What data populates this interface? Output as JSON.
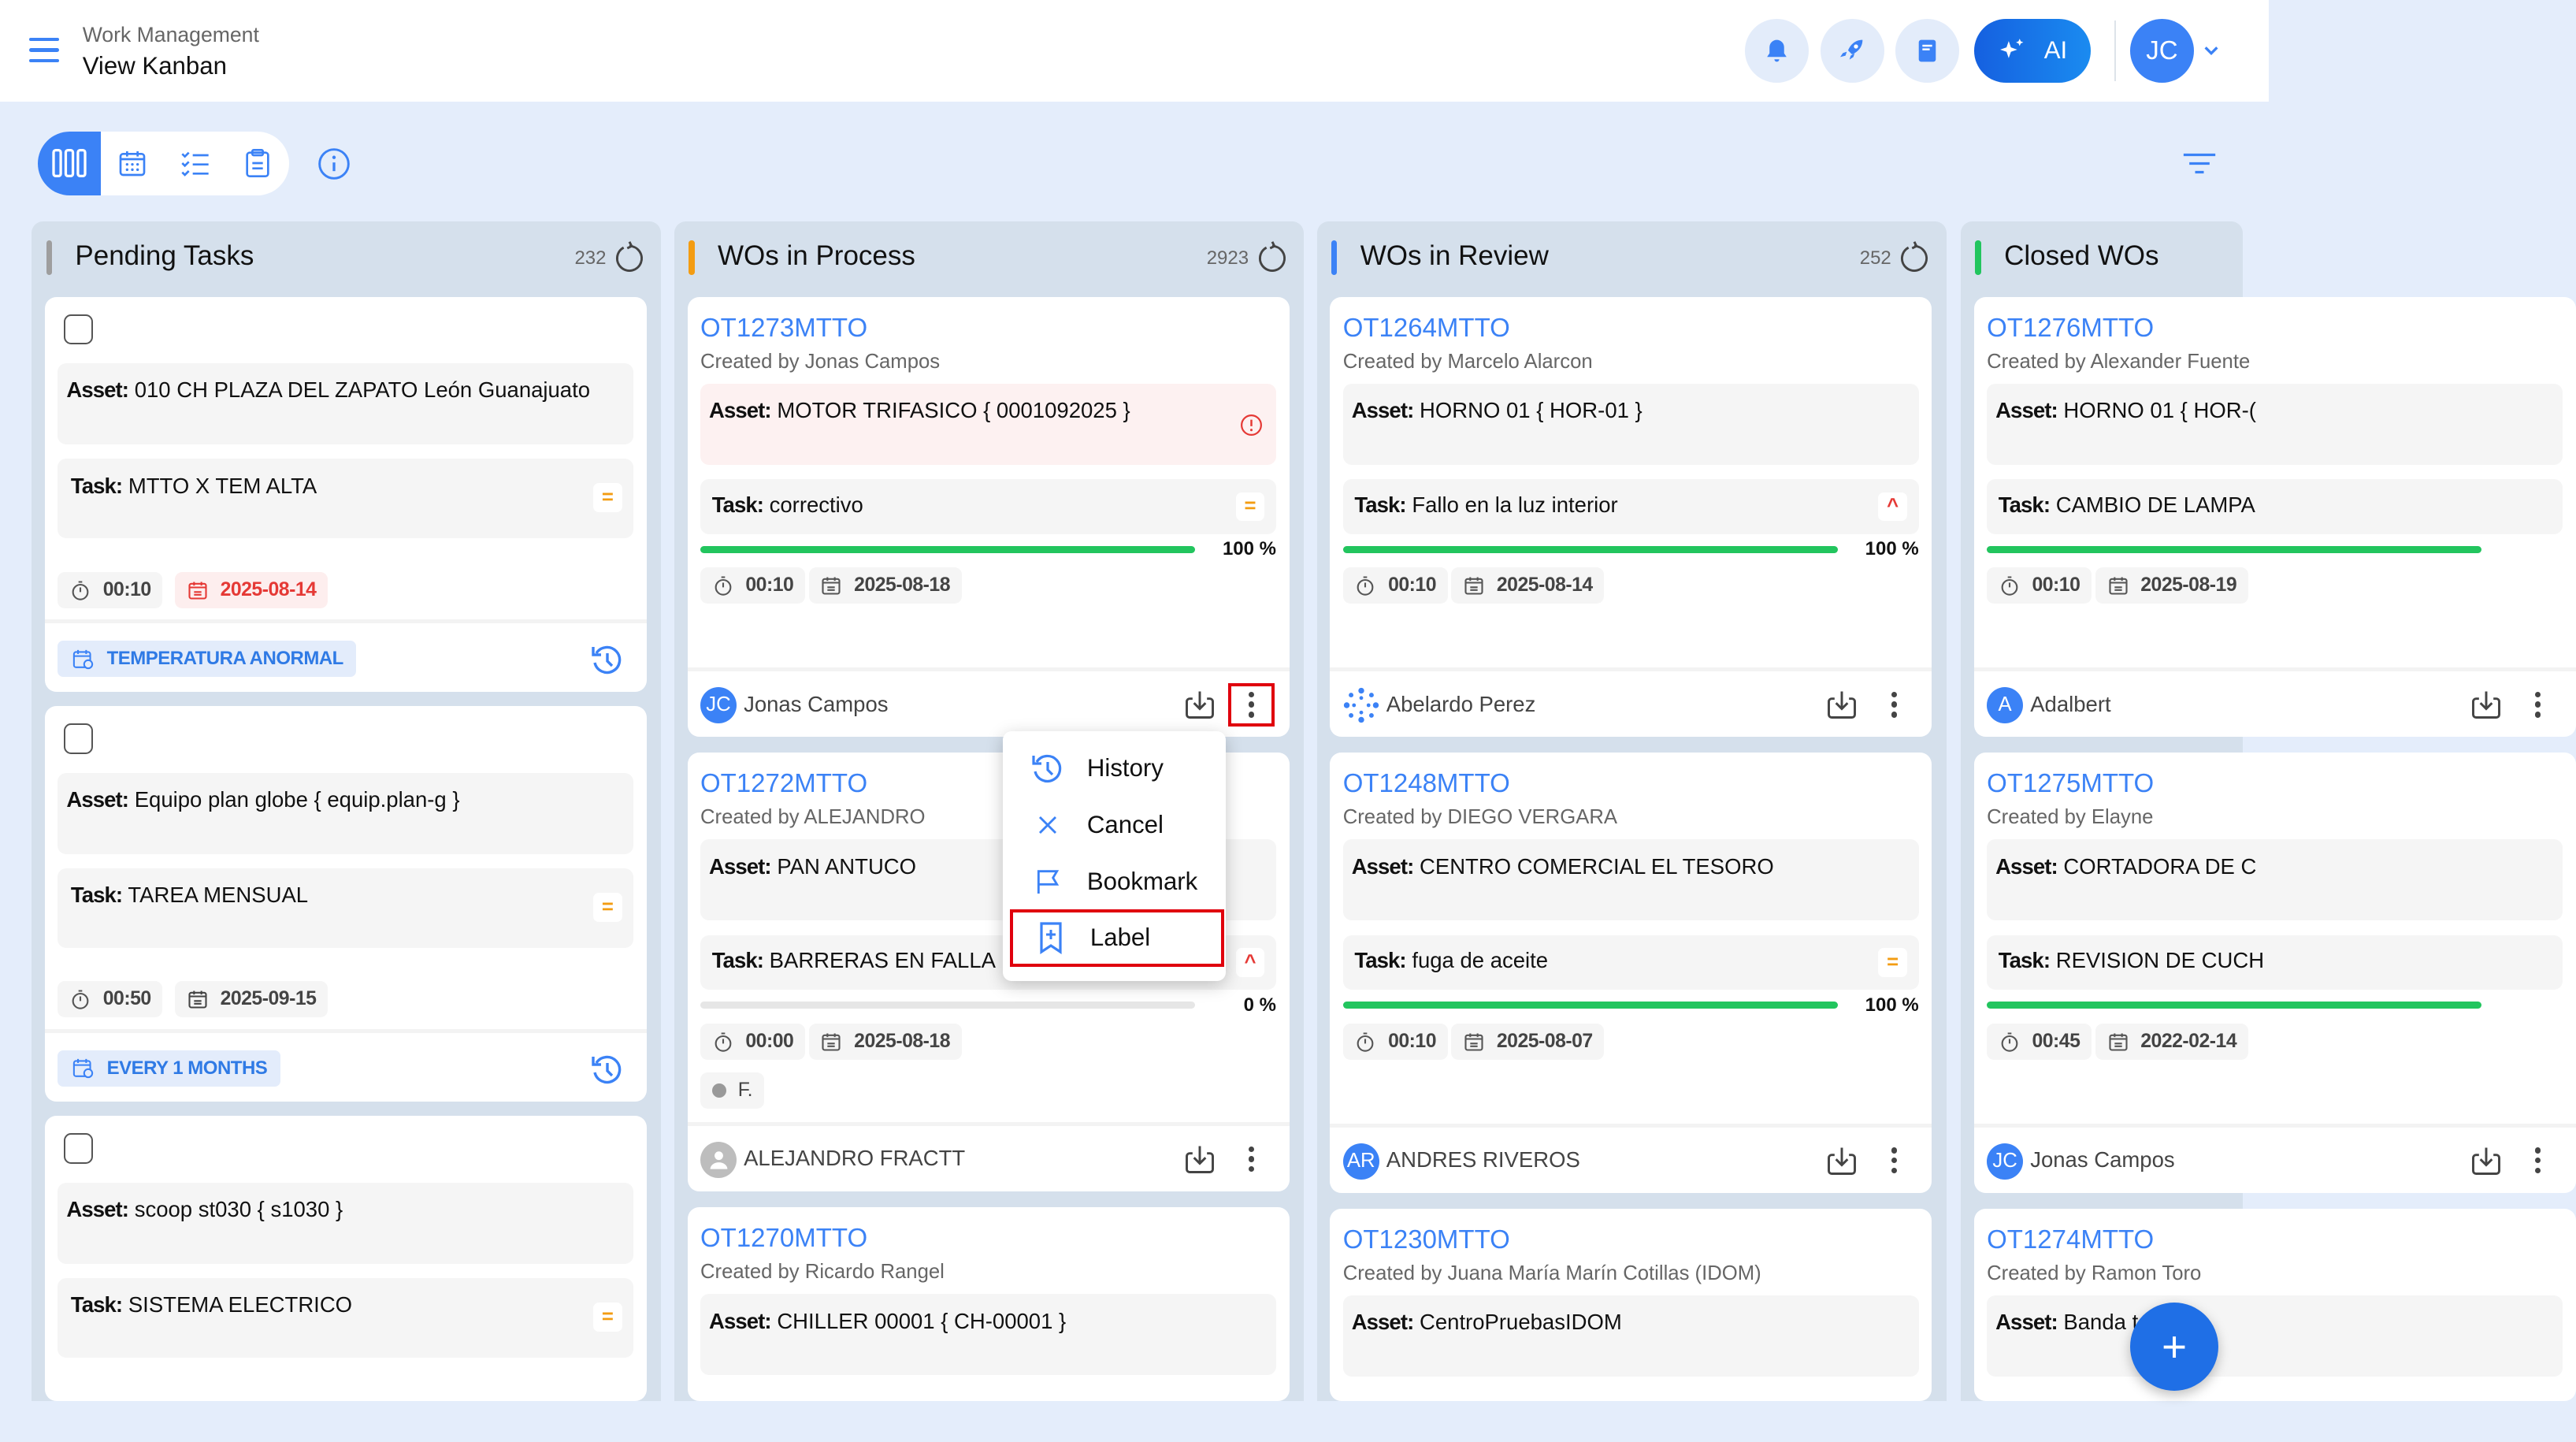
{
  "header": {
    "app_title": "Work Management",
    "page_title": "View Kanban",
    "ai_label": "AI",
    "user_initials": "JC"
  },
  "colors": {
    "accent": "#3b82f6",
    "pending": "#9e9e9e",
    "process": "#f39c12",
    "review": "#3b82f6",
    "closed": "#22c55e",
    "overdue": "#e53935",
    "progress": "#22c55e"
  },
  "columns": [
    {
      "title": "Pending Tasks",
      "count": "232",
      "color": "#9e9e9e",
      "type": "pending",
      "cards": [
        {
          "asset": "010 CH PLAZA DEL ZAPATO León Guanajuato",
          "task": "MTTO X TEM ALTA",
          "priority": "medium",
          "time": "00:10",
          "date": "2025-08-14",
          "overdue": true,
          "label": "TEMPERATURA ANORMAL"
        },
        {
          "asset": "Equipo plan globe { equip.plan-g }",
          "task": "TAREA MENSUAL",
          "priority": "medium",
          "time": "00:50",
          "date": "2025-09-15",
          "overdue": false,
          "label": "EVERY 1 MONTHS"
        },
        {
          "asset": "scoop st030 { s1030 }",
          "task": "SISTEMA ELECTRICO",
          "priority": "medium"
        }
      ]
    },
    {
      "title": "WOs in Process",
      "count": "2923",
      "color": "#f39c12",
      "type": "wo",
      "cards": [
        {
          "id": "OT1273MTTO",
          "created_by": "Created by Jonas Campos",
          "asset": "MOTOR TRIFASICO { 0001092025 }",
          "asset_alert": true,
          "task": "correctivo",
          "priority": "medium",
          "progress": 100,
          "progress_label": "100 %",
          "time": "00:10",
          "date": "2025-08-18",
          "assignee": "Jonas Campos",
          "assignee_initials": "JC",
          "avatar": "initials",
          "menu_open": true
        },
        {
          "id": "OT1272MTTO",
          "created_by": "Created by ALEJANDRO",
          "asset": "PAN ANTUCO",
          "task": "BARRERAS EN FALLA",
          "priority": "high",
          "progress": 0,
          "progress_label": "0 %",
          "time": "00:00",
          "date": "2025-08-18",
          "extra_chip": "F.",
          "assignee": "ALEJANDRO FRACTT",
          "avatar": "person"
        },
        {
          "id": "OT1270MTTO",
          "created_by": "Created by Ricardo Rangel",
          "asset": "CHILLER 00001 { CH-00001 }"
        }
      ]
    },
    {
      "title": "WOs in Review",
      "count": "252",
      "color": "#3b82f6",
      "type": "wo",
      "cards": [
        {
          "id": "OT1264MTTO",
          "created_by": "Created by Marcelo Alarcon",
          "asset": "HORNO 01 { HOR-01 }",
          "task": "Fallo en la luz interior",
          "priority": "high",
          "progress": 100,
          "progress_label": "100 %",
          "time": "00:10",
          "date": "2025-08-14",
          "assignee": "Abelardo Perez",
          "avatar": "logo"
        },
        {
          "id": "OT1248MTTO",
          "created_by": "Created by DIEGO VERGARA",
          "asset": "CENTRO COMERCIAL EL TESORO",
          "task": "fuga de aceite",
          "priority": "medium",
          "progress": 100,
          "progress_label": "100 %",
          "time": "00:10",
          "date": "2025-08-07",
          "assignee": "ANDRES RIVEROS",
          "assignee_initials": "AR",
          "avatar": "initials"
        },
        {
          "id": "OT1230MTTO",
          "created_by": "Created by Juana María Marín Cotillas (IDOM)",
          "asset": "CentroPruebasIDOM"
        }
      ]
    },
    {
      "title": "Closed WOs",
      "color": "#22c55e",
      "type": "wo",
      "cards": [
        {
          "id": "OT1276MTTO",
          "created_by": "Created by Alexander Fuente",
          "asset": "HORNO 01 { HOR-(",
          "task": "CAMBIO DE LAMPA",
          "progress": 100,
          "time": "00:10",
          "date": "2025-08-19",
          "assignee": "Adalbert",
          "assignee_initials": "A",
          "avatar": "initials"
        },
        {
          "id": "OT1275MTTO",
          "created_by": "Created by Elayne",
          "asset": "CORTADORA DE C",
          "task": "REVISION DE CUCH",
          "progress": 100,
          "time": "00:45",
          "date": "2022-02-14",
          "assignee": "Jonas Campos",
          "assignee_initials": "JC",
          "avatar": "initials"
        },
        {
          "id": "OT1274MTTO",
          "created_by": "Created by Ramon Toro",
          "asset": "Banda t"
        }
      ]
    }
  ],
  "labels": {
    "asset": "Asset:",
    "task": "Task:"
  },
  "context_menu": {
    "items": [
      {
        "label": "History",
        "icon": "history-icon"
      },
      {
        "label": "Cancel",
        "icon": "close-icon"
      },
      {
        "label": "Bookmark",
        "icon": "bookmark-flag-icon"
      },
      {
        "label": "Label",
        "icon": "label-add-icon",
        "highlighted": true
      }
    ]
  },
  "fab": {
    "label": "+"
  }
}
